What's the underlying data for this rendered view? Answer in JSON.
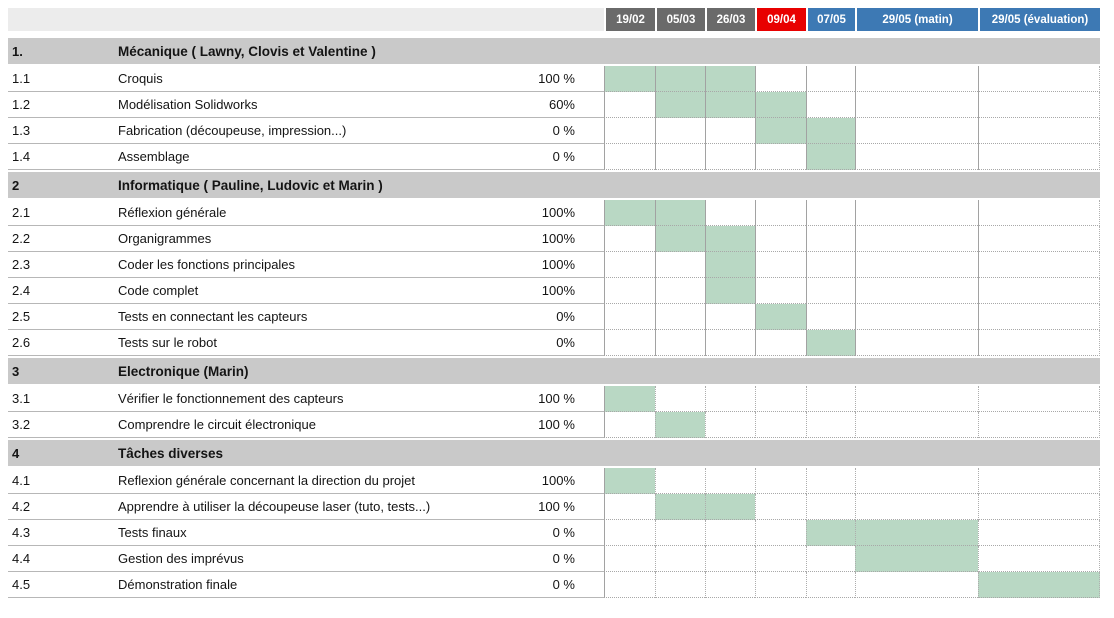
{
  "header": {
    "columns": [
      {
        "label": "19/02",
        "color": "#6a6a6a"
      },
      {
        "label": "05/03",
        "color": "#6a6a6a"
      },
      {
        "label": "26/03",
        "color": "#6a6a6a"
      },
      {
        "label": "09/04",
        "color": "#e80000"
      },
      {
        "label": "07/05",
        "color": "#3d79b4"
      },
      {
        "label": "29/05 (matin)",
        "color": "#3d79b4"
      },
      {
        "label": "29/05 (évaluation)",
        "color": "#3d79b4"
      }
    ],
    "text_color": "#ffffff"
  },
  "colors": {
    "header_left_bg": "#ececec",
    "section_band_bg": "#c9c9c9",
    "fill_green": "#b9d8c4"
  },
  "sections": [
    {
      "id": "1.",
      "title": "Mécanique ( Lawny, Clovis et Valentine )",
      "tasks": [
        {
          "id": "1.1",
          "label": "Croquis",
          "progress": "100 %",
          "cells": [
            1,
            2,
            3
          ]
        },
        {
          "id": "1.2",
          "label": "Modélisation Solidworks",
          "progress": "60%",
          "cells": [
            2,
            3,
            4
          ]
        },
        {
          "id": "1.3",
          "label": "Fabrication (découpeuse, impression...)",
          "progress": "0 %",
          "cells": [
            4,
            5
          ]
        },
        {
          "id": "1.4",
          "label": "Assemblage",
          "progress": "0 %",
          "cells": [
            5
          ]
        }
      ]
    },
    {
      "id": "2",
      "title": "Informatique ( Pauline, Ludovic et Marin )",
      "tasks": [
        {
          "id": "2.1",
          "label": "Réflexion générale",
          "progress": "100%",
          "cells": [
            1,
            2
          ]
        },
        {
          "id": "2.2",
          "label": "Organigrammes",
          "progress": "100%",
          "cells": [
            2,
            3
          ]
        },
        {
          "id": "2.3",
          "label": "Coder les fonctions principales",
          "progress": "100%",
          "cells": [
            3
          ]
        },
        {
          "id": "2.4",
          "label": "Code complet",
          "progress": "100%",
          "cells": [
            3
          ]
        },
        {
          "id": "2.5",
          "label": "Tests en connectant les capteurs",
          "progress": "0%",
          "cells": [
            4
          ]
        },
        {
          "id": "2.6",
          "label": "Tests sur le robot",
          "progress": "0%",
          "cells": [
            5
          ]
        }
      ]
    },
    {
      "id": "3",
      "title": "Electronique (Marin)",
      "tasks": [
        {
          "id": "3.1",
          "label": "Vérifier le fonctionnement des capteurs",
          "progress": "100 %",
          "cells": [
            1
          ]
        },
        {
          "id": "3.2",
          "label": "Comprendre le circuit électronique",
          "progress": "100 %",
          "cells": [
            2
          ]
        }
      ]
    },
    {
      "id": "4",
      "title": "Tâches diverses",
      "tasks": [
        {
          "id": "4.1",
          "label": "Reflexion générale concernant la direction du projet",
          "progress": "100%",
          "cells": [
            1
          ]
        },
        {
          "id": "4.2",
          "label": "Apprendre à utiliser la découpeuse laser (tuto, tests...)",
          "progress": "100 %",
          "cells": [
            2,
            3
          ]
        },
        {
          "id": "4.3",
          "label": "Tests finaux",
          "progress": "0 %",
          "cells": [
            5,
            6
          ]
        },
        {
          "id": "4.4",
          "label": "Gestion des imprévus",
          "progress": "0 %",
          "cells": [
            6
          ]
        },
        {
          "id": "4.5",
          "label": "Démonstration finale",
          "progress": "0 %",
          "cells": [
            7
          ]
        }
      ]
    }
  ]
}
